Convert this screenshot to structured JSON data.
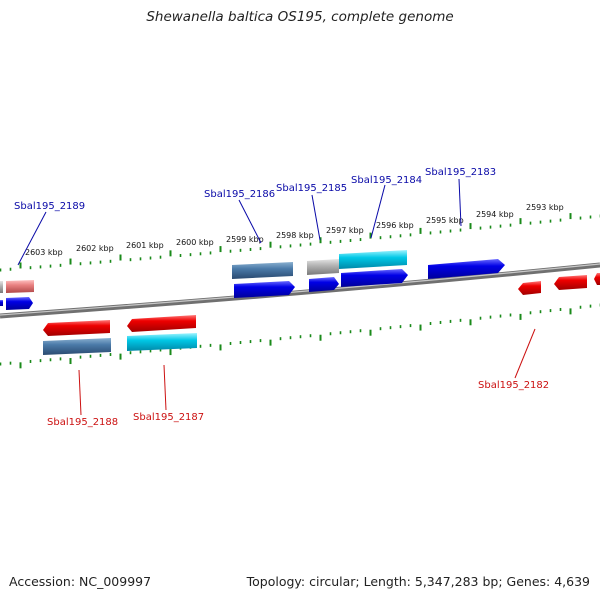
{
  "title": "Shewanella baltica OS195, complete genome",
  "accession_text": "Accession: NC_009997",
  "stats_text": "Topology: circular; Length: 5,347,283 bp; Genes: 4,639",
  "kbp_labels": [
    "2603 kbp",
    "2602 kbp",
    "2601 kbp",
    "2600 kbp",
    "2599 kbp",
    "2598 kbp",
    "2597 kbp",
    "2596 kbp",
    "2595 kbp",
    "2594 kbp",
    "2593 kbp"
  ],
  "genes_top": [
    {
      "label": "Sbal195_2189",
      "color": "#0a0aa8"
    },
    {
      "label": "Sbal195_2186",
      "color": "#0a0aa8"
    },
    {
      "label": "Sbal195_2185",
      "color": "#0a0aa8"
    },
    {
      "label": "Sbal195_2184",
      "color": "#0a0aa8"
    },
    {
      "label": "Sbal195_2183",
      "color": "#0a0aa8"
    }
  ],
  "genes_bottom": [
    {
      "label": "Sbal195_2188",
      "color": "#cc1111"
    },
    {
      "label": "Sbal195_2187",
      "color": "#cc1111"
    },
    {
      "label": "Sbal195_2182",
      "color": "#cc1111"
    }
  ],
  "colors": {
    "forward": "#0000e6",
    "reverse": "#ee0000",
    "steelblue": "#4a7aa8",
    "cyan": "#00c8e6",
    "grey": "#b0b0b0",
    "pink": "#e88080",
    "ruler": "#1a8a1a",
    "backbone": "#808080"
  }
}
